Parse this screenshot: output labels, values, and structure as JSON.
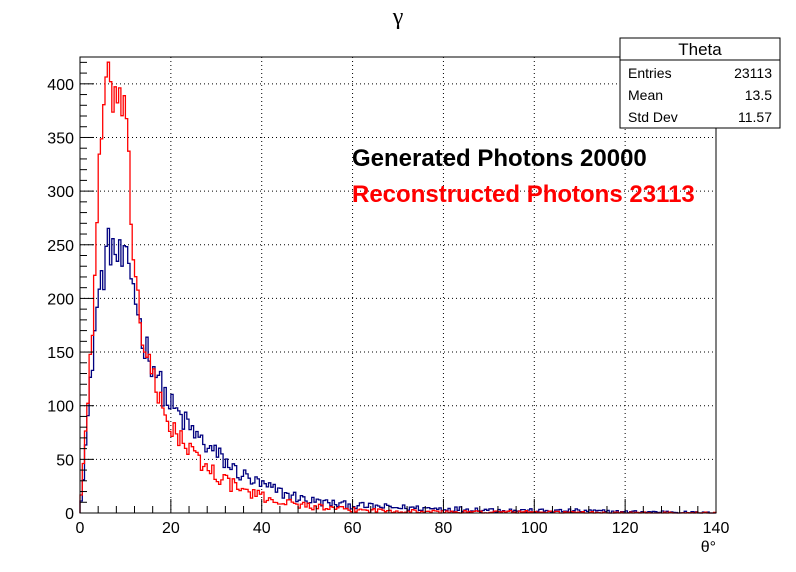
{
  "chart_data": {
    "type": "line",
    "title": "γ",
    "xlabel": "θ°",
    "ylabel": "",
    "xlim": [
      0,
      140
    ],
    "ylim": [
      0,
      425
    ],
    "grid": true,
    "x_ticks": [
      0,
      20,
      40,
      60,
      80,
      100,
      120,
      140
    ],
    "y_ticks": [
      0,
      50,
      100,
      150,
      200,
      250,
      300,
      350,
      400
    ],
    "bin_width": 0.5,
    "series": [
      {
        "color": "#00007f",
        "points": [
          [
            0,
            5
          ],
          [
            1,
            50
          ],
          [
            2,
            100
          ],
          [
            3,
            160
          ],
          [
            4,
            200
          ],
          [
            5,
            220
          ],
          [
            6,
            245
          ],
          [
            7,
            250
          ],
          [
            8,
            240
          ],
          [
            9,
            235
          ],
          [
            10,
            230
          ],
          [
            11,
            225
          ],
          [
            12,
            210
          ],
          [
            13,
            180
          ],
          [
            14,
            160
          ],
          [
            15,
            150
          ],
          [
            16,
            140
          ],
          [
            17,
            130
          ],
          [
            18,
            115
          ],
          [
            20,
            100
          ],
          [
            22,
            90
          ],
          [
            24,
            80
          ],
          [
            26,
            70
          ],
          [
            28,
            62
          ],
          [
            30,
            55
          ],
          [
            32,
            48
          ],
          [
            34,
            40
          ],
          [
            36,
            35
          ],
          [
            38,
            30
          ],
          [
            40,
            26
          ],
          [
            45,
            18
          ],
          [
            50,
            12
          ],
          [
            55,
            9
          ],
          [
            60,
            7
          ],
          [
            70,
            5
          ],
          [
            80,
            4
          ],
          [
            90,
            3
          ],
          [
            100,
            2
          ],
          [
            110,
            2
          ],
          [
            120,
            1
          ],
          [
            130,
            1
          ],
          [
            140,
            0
          ]
        ]
      },
      {
        "color": "#ff0000",
        "points": [
          [
            0,
            5
          ],
          [
            1,
            60
          ],
          [
            2,
            120
          ],
          [
            3,
            200
          ],
          [
            4,
            300
          ],
          [
            5,
            370
          ],
          [
            6,
            395
          ],
          [
            7,
            395
          ],
          [
            8,
            390
          ],
          [
            9,
            380
          ],
          [
            10,
            360
          ],
          [
            11,
            300
          ],
          [
            12,
            230
          ],
          [
            13,
            190
          ],
          [
            14,
            160
          ],
          [
            15,
            140
          ],
          [
            16,
            125
          ],
          [
            17,
            110
          ],
          [
            18,
            98
          ],
          [
            20,
            82
          ],
          [
            22,
            70
          ],
          [
            24,
            58
          ],
          [
            26,
            50
          ],
          [
            28,
            42
          ],
          [
            30,
            36
          ],
          [
            32,
            30
          ],
          [
            34,
            25
          ],
          [
            36,
            21
          ],
          [
            38,
            18
          ],
          [
            40,
            15
          ],
          [
            45,
            10
          ],
          [
            50,
            7
          ],
          [
            55,
            4
          ],
          [
            60,
            3
          ],
          [
            70,
            2
          ],
          [
            80,
            1
          ],
          [
            90,
            1
          ],
          [
            100,
            1
          ],
          [
            120,
            0
          ],
          [
            140,
            0
          ]
        ]
      }
    ],
    "legend": {
      "title": "Theta",
      "rows": [
        {
          "label": "Entries",
          "value": "23113"
        },
        {
          "label": "Mean",
          "value": "13.5"
        },
        {
          "label": "Std Dev",
          "value": "11.57"
        }
      ]
    },
    "annotations": [
      {
        "text": "Generated Photons 20000",
        "color": "#000000"
      },
      {
        "text": "Reconstructed Photons 23113",
        "color": "#ff0000"
      }
    ]
  }
}
